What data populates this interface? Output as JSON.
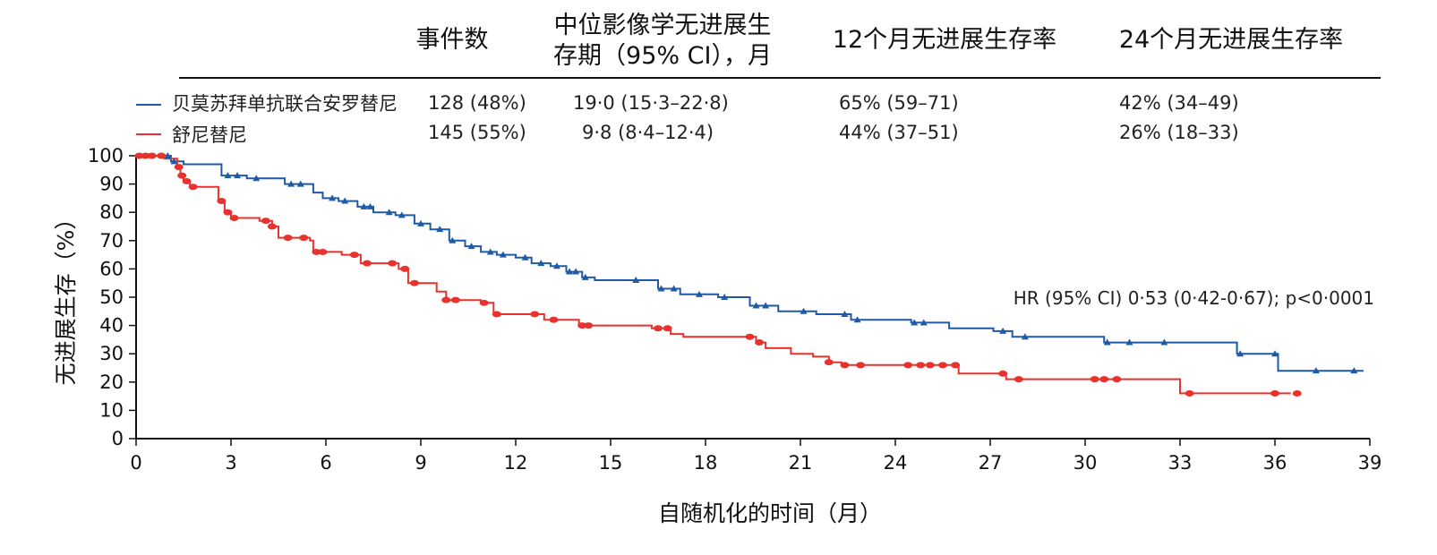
{
  "table": {
    "headers": [
      "事件数",
      "中位影像学无进展生存期（95% CI），月",
      "12个月无进展生存率",
      "24个月无进展生存率"
    ],
    "header_lines": [
      [
        "事件数"
      ],
      [
        "中位影像学无进展生",
        "存期（95% CI），月"
      ],
      [
        "12个月无进展生存率"
      ],
      [
        "24个月无进展生存率"
      ]
    ],
    "rows": [
      {
        "name": "贝莫苏拜单抗联合安罗替尼",
        "color": "#1f5aa6",
        "events": "128 (48%)",
        "median": "19·0 (15·3–22·8)",
        "pfs12": "65% (59–71)",
        "pfs24": "42% (34–49)"
      },
      {
        "name": "舒尼替尼",
        "color": "#e8322d",
        "events": "145 (55%)",
        "median": "9·8 (8·4–12·4)",
        "pfs12": "44% (37–51)",
        "pfs24": "26% (18–33)"
      }
    ]
  },
  "annotation": "HR (95% CI) 0·53 (0·42-0·67); p<0·0001",
  "chart_data": {
    "type": "line",
    "step": true,
    "xlabel": "自随机化的时间（月）",
    "ylabel": "无进展生存（%）",
    "xlim": [
      0,
      39
    ],
    "ylim": [
      0,
      100
    ],
    "xticks": [
      0,
      3,
      6,
      9,
      12,
      15,
      18,
      21,
      24,
      27,
      30,
      33,
      36,
      39
    ],
    "yticks": [
      0,
      10,
      20,
      30,
      40,
      50,
      60,
      70,
      80,
      90,
      100
    ],
    "grid": false,
    "legend": "top-left",
    "series": [
      {
        "name": "贝莫苏拜单抗联合安罗替尼",
        "color": "#1f5aa6",
        "censor_marker": "triangle",
        "x": [
          0,
          1.1,
          1.5,
          2.7,
          3.5,
          4.7,
          5.6,
          5.9,
          6.4,
          7.0,
          7.5,
          8.2,
          8.8,
          9.3,
          9.9,
          10.4,
          10.9,
          11.4,
          12.0,
          12.5,
          13.1,
          13.6,
          14.1,
          14.5,
          15.5,
          16.5,
          17.2,
          18.4,
          19.4,
          20.3,
          21.5,
          22.6,
          24.5,
          25.7,
          27.1,
          27.7,
          30.6,
          34.8,
          36.1,
          38.8
        ],
        "y": [
          100,
          98,
          97,
          93,
          92,
          90,
          87,
          85,
          84,
          82,
          80,
          79,
          76,
          74,
          70,
          68,
          66,
          65,
          64,
          62,
          61,
          59,
          57,
          56,
          56,
          53,
          51,
          50,
          47,
          45,
          44,
          42,
          41,
          39,
          38,
          36,
          34,
          30,
          24,
          24
        ],
        "censor_x": [
          1.0,
          1.2,
          2.9,
          3.2,
          3.8,
          4.9,
          5.2,
          6.2,
          6.6,
          7.2,
          7.4,
          8.0,
          8.4,
          9.0,
          9.6,
          10.0,
          10.6,
          11.2,
          11.6,
          12.3,
          12.8,
          13.3,
          13.7,
          13.9,
          14.2,
          15.8,
          16.6,
          17.0,
          17.8,
          18.6,
          19.6,
          19.9,
          21.1,
          22.4,
          22.8,
          24.6,
          24.9,
          27.4,
          28.1,
          30.7,
          31.4,
          32.5,
          34.9,
          36.0,
          37.3,
          38.5
        ],
        "censor_y": [
          100,
          99,
          93,
          93,
          92,
          90,
          90,
          85,
          84,
          82,
          81,
          79,
          79,
          76,
          74,
          70,
          70,
          66,
          65,
          64,
          62,
          61,
          60,
          59,
          57,
          56,
          55,
          52,
          51,
          50,
          47,
          47,
          45,
          44,
          43,
          41,
          41,
          38,
          36,
          34,
          34,
          34,
          30,
          30,
          24,
          24
        ]
      },
      {
        "name": "舒尼替尼",
        "color": "#e8322d",
        "censor_marker": "dot",
        "x": [
          0,
          0.9,
          1.3,
          1.4,
          1.5,
          1.7,
          2.6,
          2.8,
          3.0,
          3.9,
          4.3,
          4.5,
          5.5,
          5.6,
          6.5,
          7.1,
          8.3,
          8.6,
          9.5,
          9.8,
          10.9,
          11.3,
          12.5,
          12.9,
          14.0,
          15.3,
          16.3,
          16.9,
          17.3,
          19.3,
          19.6,
          19.9,
          20.7,
          21.4,
          21.9,
          22.3,
          24.2,
          25.2,
          26.0,
          27.5,
          27.8,
          30.2,
          33.0,
          36.5
        ],
        "y": [
          100,
          99,
          96,
          93,
          91,
          89,
          84,
          80,
          78,
          77,
          75,
          71,
          70,
          66,
          65,
          62,
          60,
          55,
          52,
          49,
          48,
          44,
          44,
          42,
          40,
          40,
          39,
          37,
          36,
          36,
          34,
          32,
          30,
          29,
          27,
          26,
          26,
          26,
          23,
          21,
          21,
          21,
          16,
          16
        ],
        "censor_x": [
          0.1,
          0.3,
          0.5,
          0.8,
          1.35,
          1.45,
          1.6,
          1.8,
          2.7,
          2.9,
          3.1,
          4.1,
          4.3,
          4.8,
          5.3,
          5.7,
          5.9,
          6.9,
          7.3,
          8.1,
          8.5,
          8.8,
          9.8,
          10.1,
          11.0,
          11.4,
          12.6,
          13.2,
          14.1,
          14.3,
          16.5,
          16.8,
          19.4,
          19.7,
          21.9,
          22.4,
          22.9,
          24.4,
          24.8,
          25.1,
          25.5,
          25.9,
          27.4,
          27.9,
          30.3,
          30.6,
          31.0,
          33.3,
          36.0,
          36.7
        ],
        "censor_y": [
          100,
          100,
          100,
          99,
          93,
          92,
          90,
          89,
          82,
          79,
          78,
          77,
          75,
          71,
          70,
          70,
          66,
          65,
          62,
          61,
          59,
          55,
          50,
          49,
          48,
          45,
          44,
          42,
          41,
          40,
          38,
          37,
          35,
          34,
          28,
          26,
          26,
          26,
          26,
          26,
          26,
          26,
          23,
          21,
          21,
          21,
          21,
          16,
          16,
          16
        ]
      }
    ]
  }
}
